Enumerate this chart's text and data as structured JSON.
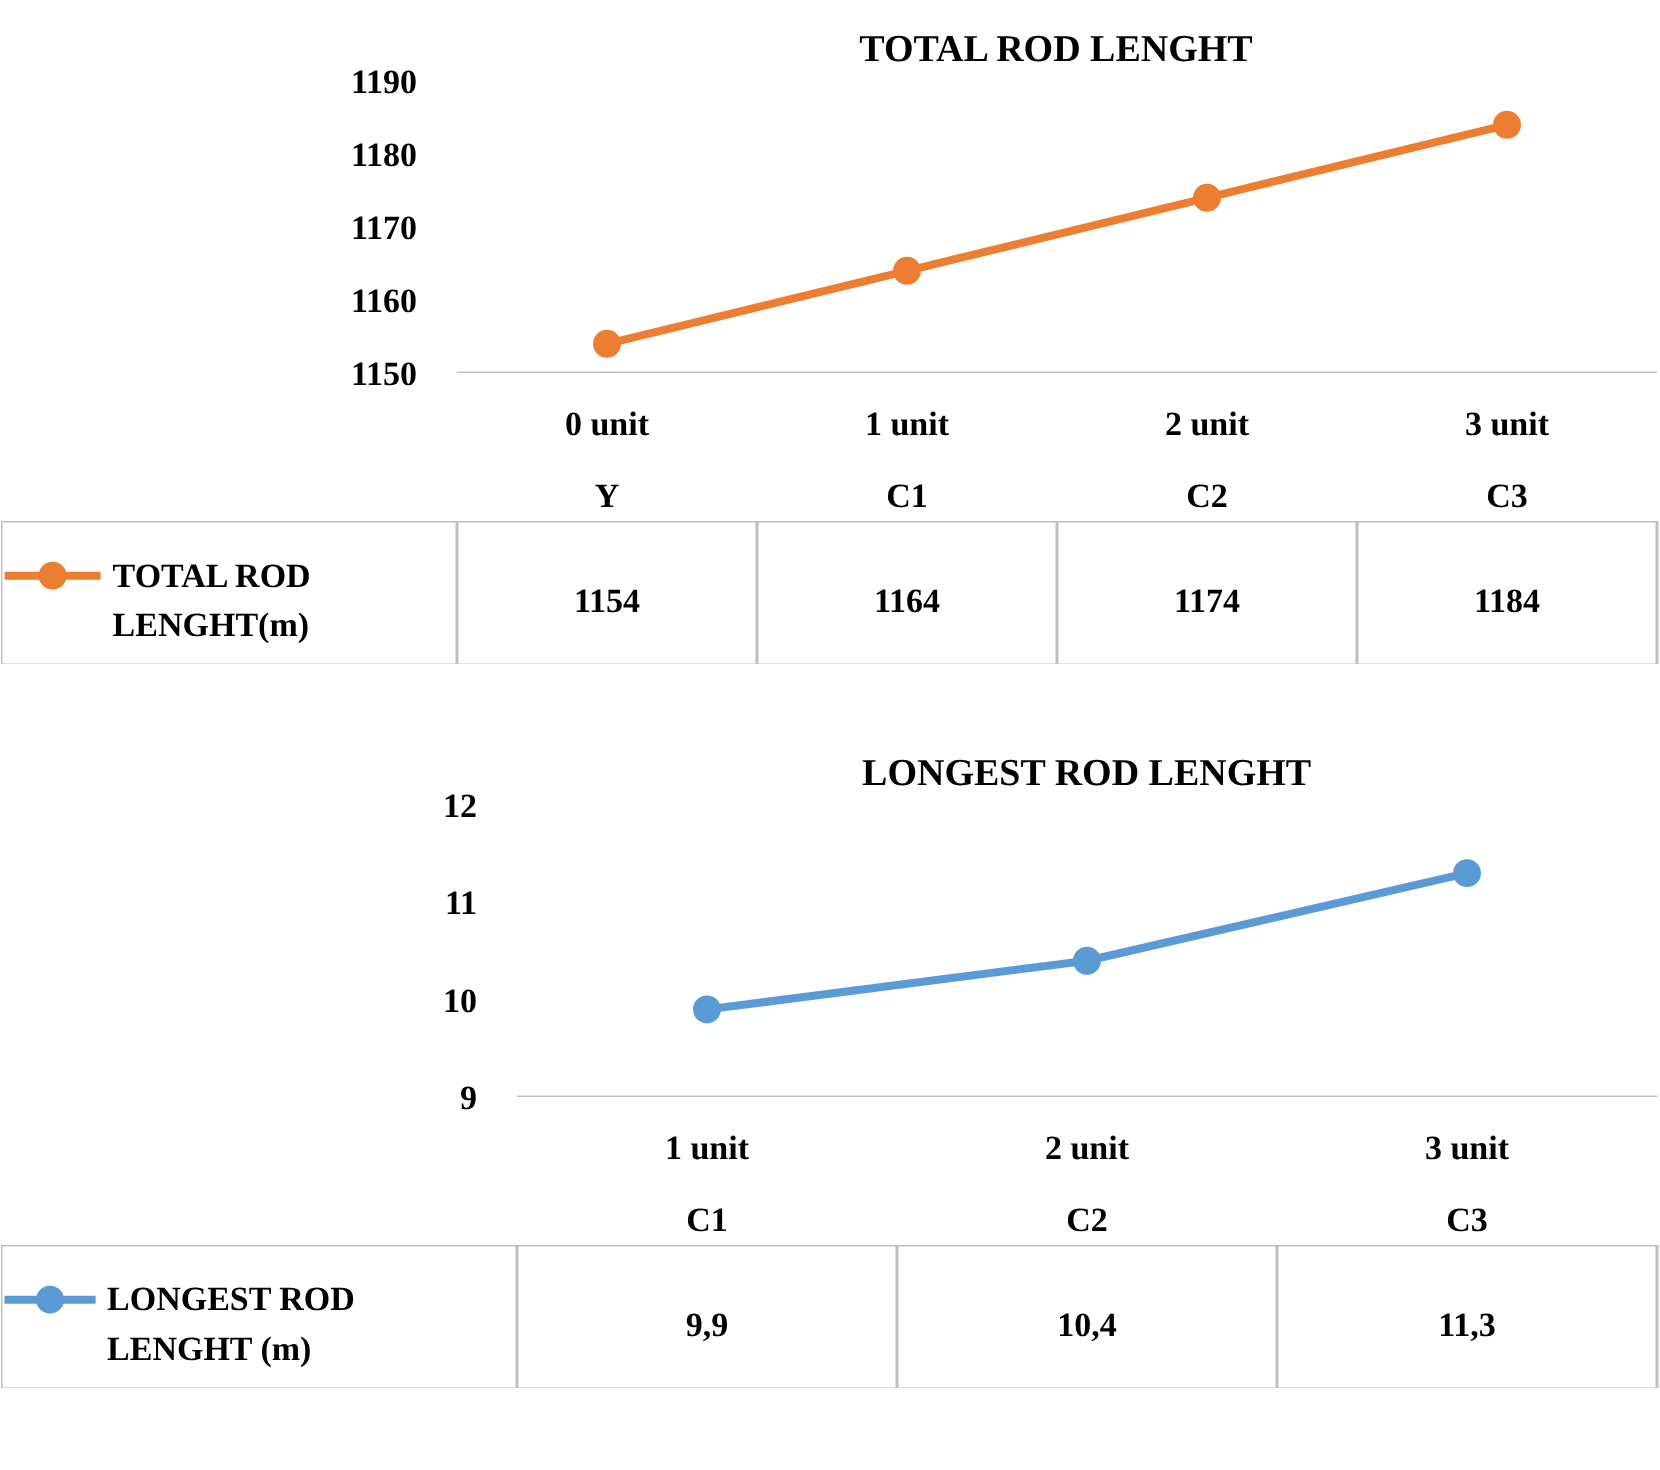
{
  "chart_data": [
    {
      "type": "line",
      "title": "TOTAL ROD LENGHT",
      "categories": [
        "0 unit\nY",
        "1 unit\nC1",
        "2 unit\nC2",
        "3 unit\nC3"
      ],
      "series": [
        {
          "name": "TOTAL ROD LENGHT(m)",
          "color": "#ed7d31",
          "values": [
            1154,
            1164,
            1174,
            1184
          ]
        }
      ],
      "ylim": [
        1150,
        1190
      ],
      "yticks": [
        1150,
        1160,
        1170,
        1180,
        1190
      ],
      "grid": false,
      "legend": "bottom left",
      "marker": "circle",
      "line_style": "solid",
      "data_labels": true
    },
    {
      "type": "line",
      "title": "LONGEST ROD LENGHT",
      "categories": [
        "1 unit\nC1",
        "2 unit\nC2",
        "3 unit\nC3"
      ],
      "series": [
        {
          "name": "LONGEST ROD LENGHT (m)",
          "color": "#5b9bd5",
          "values": [
            9.9,
            10.4,
            11.3
          ],
          "value_labels": [
            "9,9",
            "10,4",
            "11,3"
          ]
        }
      ],
      "ylim": [
        9,
        12
      ],
      "yticks": [
        9,
        10,
        11,
        12
      ],
      "grid": false,
      "legend": "bottom left",
      "marker": "circle",
      "line_style": "solid"
    }
  ]
}
